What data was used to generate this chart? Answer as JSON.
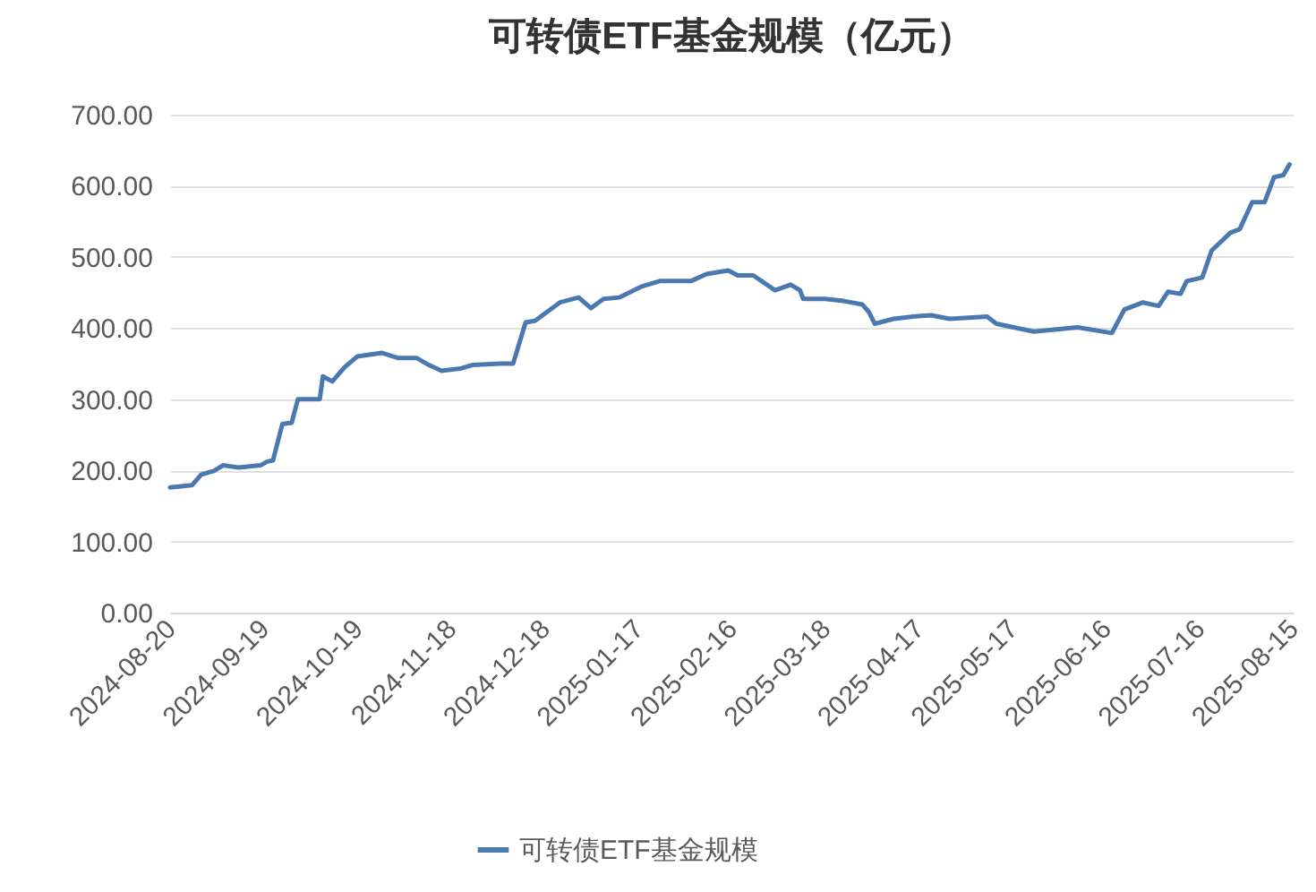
{
  "chart_data": {
    "type": "line",
    "title": "可转债ETF基金规模（亿元）",
    "x": [
      "2024-08-20",
      "2024-08-27",
      "2024-08-30",
      "2024-09-03",
      "2024-09-06",
      "2024-09-11",
      "2024-09-18",
      "2024-09-20",
      "2024-09-22",
      "2024-09-25",
      "2024-09-28",
      "2024-09-30",
      "2024-10-07",
      "2024-10-08",
      "2024-10-11",
      "2024-10-15",
      "2024-10-19",
      "2024-10-27",
      "2024-11-01",
      "2024-11-07",
      "2024-11-11",
      "2024-11-15",
      "2024-11-21",
      "2024-11-25",
      "2024-12-04",
      "2024-12-08",
      "2024-12-12",
      "2024-12-15",
      "2024-12-19",
      "2024-12-23",
      "2024-12-29",
      "2025-01-02",
      "2025-01-06",
      "2025-01-11",
      "2025-01-18",
      "2025-01-24",
      "2025-02-03",
      "2025-02-08",
      "2025-02-15",
      "2025-02-18",
      "2025-02-23",
      "2025-03-02",
      "2025-03-07",
      "2025-03-10",
      "2025-03-11",
      "2025-03-18",
      "2025-03-24",
      "2025-03-30",
      "2025-04-01",
      "2025-04-03",
      "2025-04-09",
      "2025-04-15",
      "2025-04-21",
      "2025-04-27",
      "2025-05-09",
      "2025-05-12",
      "2025-05-24",
      "2025-06-07",
      "2025-06-18",
      "2025-06-22",
      "2025-06-28",
      "2025-07-03",
      "2025-07-06",
      "2025-07-10",
      "2025-07-12",
      "2025-07-17",
      "2025-07-20",
      "2025-07-26",
      "2025-07-29",
      "2025-08-02",
      "2025-08-06",
      "2025-08-09",
      "2025-08-12",
      "2025-08-14"
    ],
    "series": [
      {
        "name": "可转债ETF基金规模",
        "color": "#4a78b0",
        "values": [
          176,
          179,
          194,
          199,
          207,
          204,
          207,
          212,
          214,
          265,
          267,
          300,
          300,
          332,
          325,
          345,
          360,
          365,
          358,
          358,
          348,
          340,
          343,
          348,
          350,
          350,
          408,
          410,
          423,
          436,
          443,
          428,
          441,
          443,
          458,
          466,
          466,
          476,
          481,
          474,
          474,
          453,
          461,
          453,
          441,
          441,
          438,
          433,
          423,
          406,
          413,
          416,
          418,
          413,
          416,
          406,
          395,
          401,
          393,
          426,
          436,
          431,
          451,
          448,
          466,
          471,
          509,
          534,
          539,
          577,
          577,
          612,
          615,
          630
        ]
      }
    ],
    "xlim": [
      "2024-08-20",
      "2025-08-15"
    ],
    "xticks": [
      "2024-08-20",
      "2024-09-19",
      "2024-10-19",
      "2024-11-18",
      "2024-12-18",
      "2025-01-17",
      "2025-02-16",
      "2025-03-18",
      "2025-04-17",
      "2025-05-17",
      "2025-06-16",
      "2025-07-16",
      "2025-08-15"
    ],
    "ylim": [
      0,
      700
    ],
    "yticks": [
      {
        "value": 0,
        "label": "0.00"
      },
      {
        "value": 100,
        "label": "100.00"
      },
      {
        "value": 200,
        "label": "200.00"
      },
      {
        "value": 300,
        "label": "300.00"
      },
      {
        "value": 400,
        "label": "400.00"
      },
      {
        "value": 500,
        "label": "500.00"
      },
      {
        "value": 600,
        "label": "600.00"
      },
      {
        "value": 700,
        "label": "700.00"
      }
    ],
    "grid": "y",
    "legend": "bottom",
    "line_style": "solid"
  }
}
